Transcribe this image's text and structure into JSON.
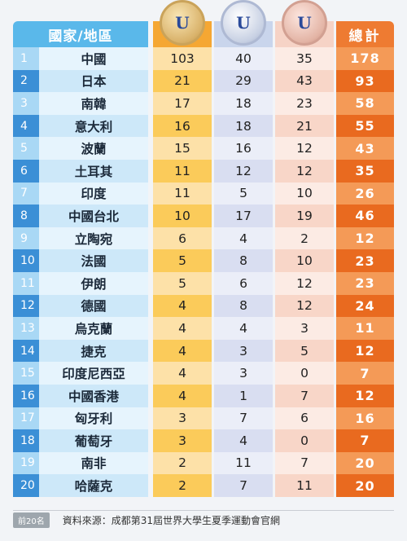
{
  "header": {
    "country_label": "國家/地區",
    "total_label": "總計",
    "medal_mark": "U"
  },
  "rows": [
    {
      "rank": "1",
      "name": "中國",
      "gold": "103",
      "silver": "40",
      "bronze": "35",
      "total": "178"
    },
    {
      "rank": "2",
      "name": "日本",
      "gold": "21",
      "silver": "29",
      "bronze": "43",
      "total": "93"
    },
    {
      "rank": "3",
      "name": "南韓",
      "gold": "17",
      "silver": "18",
      "bronze": "23",
      "total": "58"
    },
    {
      "rank": "4",
      "name": "意大利",
      "gold": "16",
      "silver": "18",
      "bronze": "21",
      "total": "55"
    },
    {
      "rank": "5",
      "name": "波蘭",
      "gold": "15",
      "silver": "16",
      "bronze": "12",
      "total": "43"
    },
    {
      "rank": "6",
      "name": "土耳其",
      "gold": "11",
      "silver": "12",
      "bronze": "12",
      "total": "35"
    },
    {
      "rank": "7",
      "name": "印度",
      "gold": "11",
      "silver": "5",
      "bronze": "10",
      "total": "26"
    },
    {
      "rank": "8",
      "name": "中國台北",
      "gold": "10",
      "silver": "17",
      "bronze": "19",
      "total": "46"
    },
    {
      "rank": "9",
      "name": "立陶宛",
      "gold": "6",
      "silver": "4",
      "bronze": "2",
      "total": "12"
    },
    {
      "rank": "10",
      "name": "法國",
      "gold": "5",
      "silver": "8",
      "bronze": "10",
      "total": "23"
    },
    {
      "rank": "11",
      "name": "伊朗",
      "gold": "5",
      "silver": "6",
      "bronze": "12",
      "total": "23"
    },
    {
      "rank": "12",
      "name": "德國",
      "gold": "4",
      "silver": "8",
      "bronze": "12",
      "total": "24"
    },
    {
      "rank": "13",
      "name": "烏克蘭",
      "gold": "4",
      "silver": "4",
      "bronze": "3",
      "total": "11"
    },
    {
      "rank": "14",
      "name": "捷克",
      "gold": "4",
      "silver": "3",
      "bronze": "5",
      "total": "12"
    },
    {
      "rank": "15",
      "name": "印度尼西亞",
      "gold": "4",
      "silver": "3",
      "bronze": "0",
      "total": "7"
    },
    {
      "rank": "16",
      "name": "中國香港",
      "gold": "4",
      "silver": "1",
      "bronze": "7",
      "total": "12"
    },
    {
      "rank": "17",
      "name": "匈牙利",
      "gold": "3",
      "silver": "7",
      "bronze": "6",
      "total": "16"
    },
    {
      "rank": "18",
      "name": "葡萄牙",
      "gold": "3",
      "silver": "4",
      "bronze": "0",
      "total": "7"
    },
    {
      "rank": "19",
      "name": "南非",
      "gold": "2",
      "silver": "11",
      "bronze": "7",
      "total": "20"
    },
    {
      "rank": "20",
      "name": "哈薩克",
      "gold": "2",
      "silver": "7",
      "bronze": "11",
      "total": "20"
    }
  ],
  "footer": {
    "tag": "前20名",
    "source": "資料來源：成都第31屆世界大學生夏季運動會官網"
  }
}
